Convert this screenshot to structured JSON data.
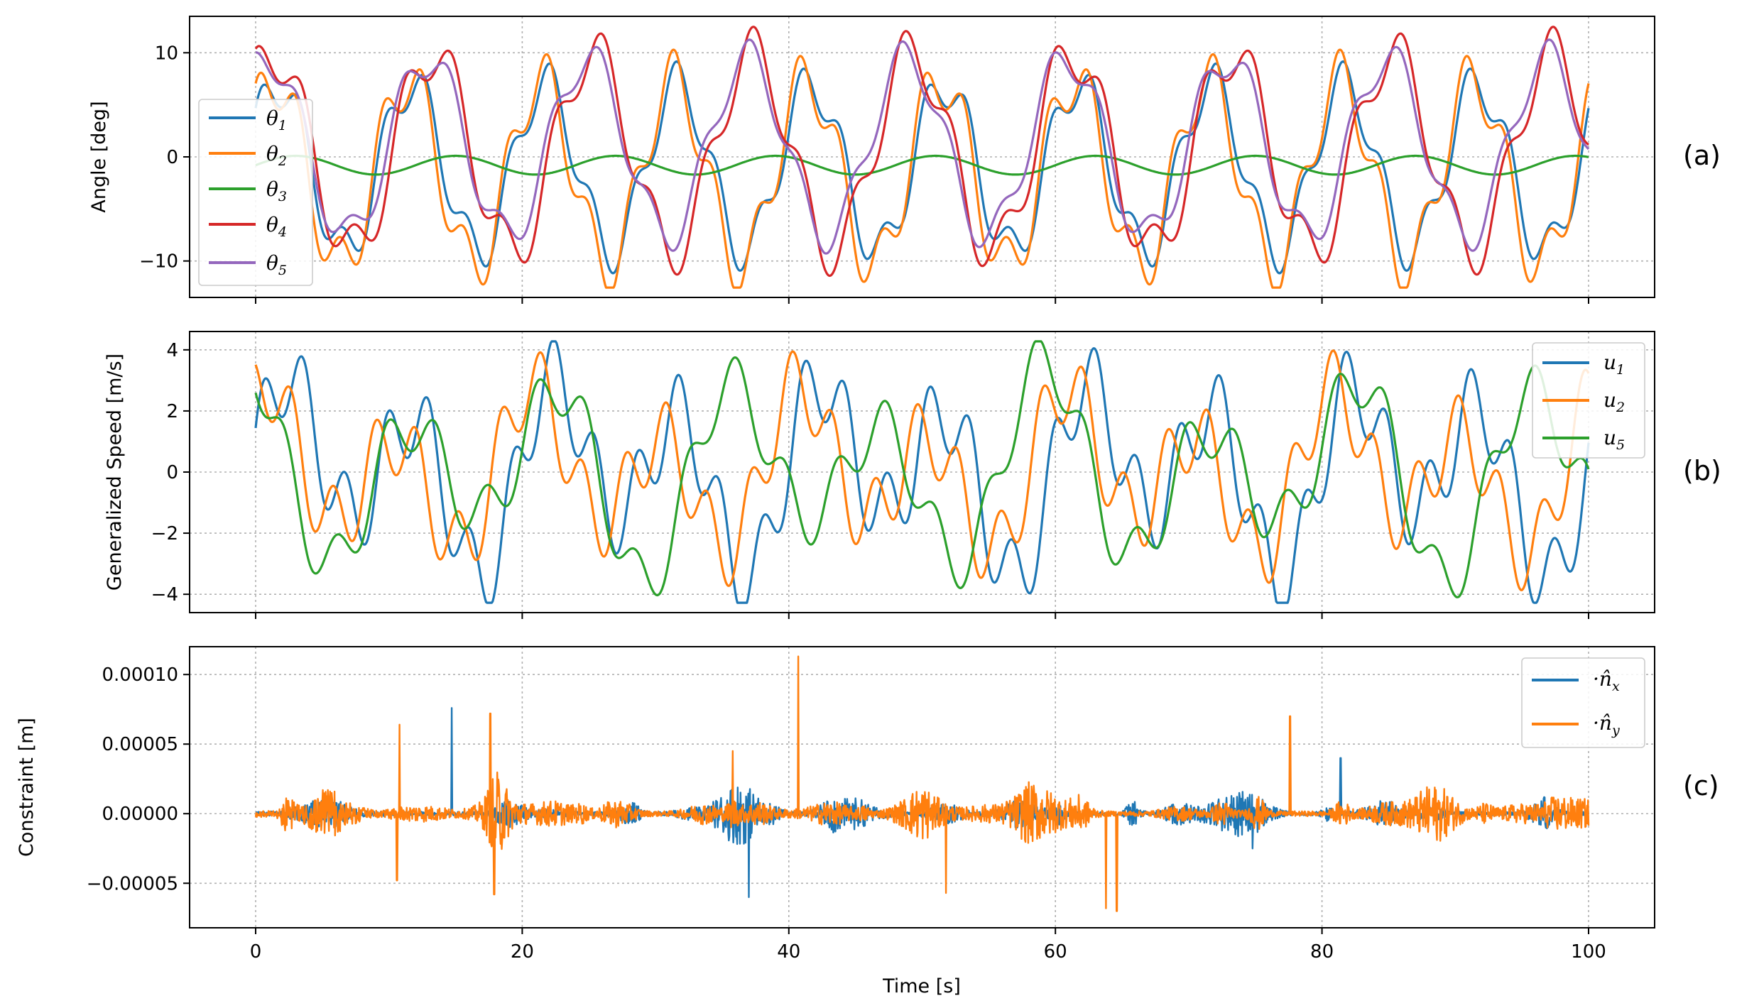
{
  "chart_data": [
    {
      "type": "line",
      "panel_tag": "(a)",
      "ylabel": "Angle [deg]",
      "xlim": [
        0,
        100
      ],
      "ylim": [
        -13.5,
        13.5
      ],
      "yticks": [
        10,
        0,
        -10
      ],
      "ytick_labels": [
        "10",
        "0",
        "−10"
      ],
      "grid": true,
      "legend_loc": "left",
      "series": [
        {
          "name": "θ1",
          "legend_main": "θ",
          "legend_sub": "1",
          "color": "#1f77b4",
          "period": 10,
          "phase": 0.5,
          "amp_main": 8.0,
          "amp_h2": 2.2,
          "offset": -1.0
        },
        {
          "name": "θ2",
          "legend_main": "θ",
          "legend_sub": "2",
          "color": "#ff7f0e",
          "period": 10,
          "phase": 0.7,
          "amp_main": 9.0,
          "amp_h2": 2.8,
          "offset": -1.5
        },
        {
          "name": "θ3",
          "legend_main": "θ",
          "legend_sub": "3",
          "color": "#2ca02c",
          "period": 12,
          "phase": 0.0,
          "amp_main": 0.9,
          "amp_h2": 0.0,
          "offset": -0.8
        },
        {
          "name": "θ4",
          "legend_main": "θ",
          "legend_sub": "4",
          "color": "#d62728",
          "period": 12,
          "phase": 0.9,
          "amp_main": 9.5,
          "amp_h2": 2.5,
          "offset": 0.5
        },
        {
          "name": "θ5",
          "legend_main": "θ",
          "legend_sub": "5",
          "color": "#9467bd",
          "period": 12,
          "phase": 1.1,
          "amp_main": 8.5,
          "amp_h2": 1.8,
          "offset": 1.0
        }
      ],
      "peaks_approx": {
        "max": 12.2,
        "min": -12.0
      }
    },
    {
      "type": "line",
      "panel_tag": "(b)",
      "ylabel": "Generalized Speed [m/s]",
      "xlim": [
        0,
        100
      ],
      "ylim": [
        -4.6,
        4.6
      ],
      "yticks": [
        4,
        2,
        0,
        -2,
        -4
      ],
      "ytick_labels": [
        "4",
        "2",
        "0",
        "−2",
        "−4"
      ],
      "grid": true,
      "legend_loc": "upper right",
      "series": [
        {
          "name": "u1",
          "legend_main": "u",
          "legend_sub": "1",
          "color": "#1f77b4",
          "period": 10,
          "phase": 0.3,
          "amp_main": 2.4,
          "amp_h2": 1.3,
          "offset": 0.0
        },
        {
          "name": "u2",
          "legend_main": "u",
          "legend_sub": "2",
          "color": "#ff7f0e",
          "period": 10,
          "phase": 1.2,
          "amp_main": 2.0,
          "amp_h2": 1.2,
          "offset": 0.0
        },
        {
          "name": "u5",
          "legend_main": "u",
          "legend_sub": "5",
          "color": "#2ca02c",
          "period": 12,
          "phase": 2.0,
          "amp_main": 2.4,
          "amp_h2": 0.9,
          "offset": 0.0
        }
      ],
      "peaks_approx": {
        "max": 4.1,
        "min": -4.2
      }
    },
    {
      "type": "line",
      "panel_tag": "(c)",
      "ylabel": "Constraint [m]",
      "xlabel": "Time [s]",
      "xlim": [
        0,
        100
      ],
      "ylim": [
        -8.2e-05,
        0.00012
      ],
      "yticks": [
        0.0001,
        5e-05,
        0,
        -5e-05
      ],
      "ytick_labels": [
        "0.00010",
        "0.00005",
        "0.00000",
        "−0.00005"
      ],
      "xticks": [
        0,
        20,
        40,
        60,
        80,
        100
      ],
      "xtick_labels": [
        "0",
        "20",
        "40",
        "60",
        "80",
        "100"
      ],
      "grid": true,
      "legend_loc": "upper right",
      "series": [
        {
          "name": "·n̂x",
          "legend_main": "·n̂",
          "legend_sub": "x",
          "color": "#1f77b4",
          "noise": 4e-06,
          "spikes": [
            {
              "x": 14.7,
              "y": 7.6e-05
            },
            {
              "x": 37.0,
              "y": -6e-05
            },
            {
              "x": 81.4,
              "y": 4e-05
            },
            {
              "x": 74.8,
              "y": -2.5e-05
            }
          ]
        },
        {
          "name": "·n̂y",
          "legend_main": "·n̂",
          "legend_sub": "y",
          "color": "#ff7f0e",
          "noise": 5.5e-06,
          "spikes": [
            {
              "x": 10.8,
              "y": 6.4e-05
            },
            {
              "x": 17.6,
              "y": 7.2e-05
            },
            {
              "x": 40.7,
              "y": 0.000113
            },
            {
              "x": 64.6,
              "y": -7e-05
            },
            {
              "x": 63.8,
              "y": -6.8e-05
            },
            {
              "x": 77.6,
              "y": 7e-05
            },
            {
              "x": 35.8,
              "y": 4.5e-05
            },
            {
              "x": 10.6,
              "y": -4.8e-05
            },
            {
              "x": 17.9,
              "y": -5.8e-05
            },
            {
              "x": 51.8,
              "y": -5.7e-05
            }
          ]
        }
      ]
    }
  ]
}
